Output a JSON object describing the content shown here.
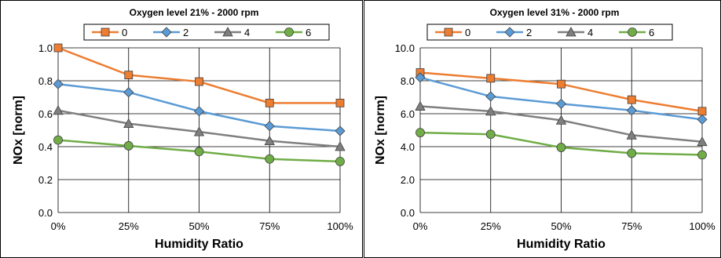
{
  "chart_data": [
    {
      "type": "line",
      "title": "Oxygen level 21% - 2000 rpm",
      "xlabel": "Humidity Ratio",
      "ylabel": "NOx [norm]",
      "categories": [
        "0%",
        "25%",
        "50%",
        "75%",
        "100%"
      ],
      "yticks": [
        "0.0",
        "0.2",
        "0.4",
        "0.6",
        "0.8",
        "1.0"
      ],
      "ylim": [
        0,
        1.0
      ],
      "grid": true,
      "legend": "top",
      "series": [
        {
          "name": "0",
          "color": "#ED7D31",
          "marker": "square",
          "values": [
            1.0,
            0.835,
            0.795,
            0.665,
            0.665
          ]
        },
        {
          "name": "2",
          "color": "#5B9BD5",
          "marker": "diamond",
          "values": [
            0.78,
            0.73,
            0.615,
            0.525,
            0.495
          ]
        },
        {
          "name": "4",
          "color": "#7F7F7F",
          "marker": "triangle",
          "values": [
            0.62,
            0.54,
            0.49,
            0.435,
            0.4
          ]
        },
        {
          "name": "6",
          "color": "#70AD47",
          "marker": "circle",
          "values": [
            0.44,
            0.405,
            0.37,
            0.325,
            0.31
          ]
        }
      ]
    },
    {
      "type": "line",
      "title": "Oxygen level 31% - 2000 rpm",
      "xlabel": "Humidity Ratio",
      "ylabel": "NOx [norm]",
      "categories": [
        "0%",
        "25%",
        "50%",
        "75%",
        "100%"
      ],
      "yticks": [
        "0.0",
        "2.0",
        "4.0",
        "6.0",
        "8.0",
        "10.0"
      ],
      "ylim": [
        0,
        10.0
      ],
      "grid": true,
      "legend": "top",
      "series": [
        {
          "name": "0",
          "color": "#ED7D31",
          "marker": "square",
          "values": [
            8.5,
            8.15,
            7.8,
            6.85,
            6.15
          ]
        },
        {
          "name": "2",
          "color": "#5B9BD5",
          "marker": "diamond",
          "values": [
            8.2,
            7.05,
            6.6,
            6.2,
            5.65
          ]
        },
        {
          "name": "4",
          "color": "#7F7F7F",
          "marker": "triangle",
          "values": [
            6.45,
            6.15,
            5.6,
            4.7,
            4.3
          ]
        },
        {
          "name": "6",
          "color": "#70AD47",
          "marker": "circle",
          "values": [
            4.85,
            4.75,
            3.95,
            3.6,
            3.5
          ]
        }
      ]
    }
  ]
}
